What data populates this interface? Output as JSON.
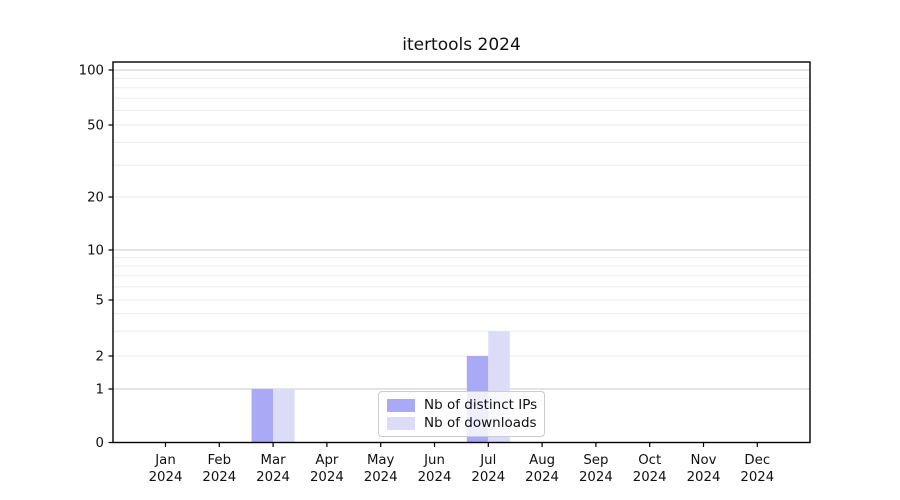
{
  "chart_data": {
    "type": "bar",
    "title": "itertools 2024",
    "categories": [
      {
        "month": "Jan",
        "year": "2024"
      },
      {
        "month": "Feb",
        "year": "2024"
      },
      {
        "month": "Mar",
        "year": "2024"
      },
      {
        "month": "Apr",
        "year": "2024"
      },
      {
        "month": "May",
        "year": "2024"
      },
      {
        "month": "Jun",
        "year": "2024"
      },
      {
        "month": "Jul",
        "year": "2024"
      },
      {
        "month": "Aug",
        "year": "2024"
      },
      {
        "month": "Sep",
        "year": "2024"
      },
      {
        "month": "Oct",
        "year": "2024"
      },
      {
        "month": "Nov",
        "year": "2024"
      },
      {
        "month": "Dec",
        "year": "2024"
      }
    ],
    "series": [
      {
        "name": "Nb of distinct IPs",
        "color": "#a9a9f6",
        "values": [
          0,
          0,
          1,
          0,
          0,
          0,
          2,
          0,
          0,
          0,
          0,
          0
        ]
      },
      {
        "name": "Nb of downloads",
        "color": "#dcdcf9",
        "values": [
          0,
          0,
          1,
          0,
          0,
          0,
          3,
          0,
          0,
          0,
          0,
          0
        ]
      }
    ],
    "y_axis": {
      "scale": "symlog",
      "ticks": [
        0,
        1,
        2,
        5,
        10,
        20,
        50,
        100
      ],
      "major_grid_values": [
        1,
        10,
        100
      ],
      "minor_ticks": [
        3,
        4,
        6,
        7,
        8,
        9,
        30,
        40,
        60,
        70,
        80,
        90
      ],
      "range": [
        0,
        110
      ]
    },
    "x_axis": {
      "label": "",
      "tick_count": 12
    },
    "legend": {
      "position": "lower center"
    },
    "grid": "horizontal",
    "colors": {
      "major_grid": "#c8c8c8",
      "minor_grid": "#ebebeb",
      "spine": "#000000",
      "text": "#111111",
      "legend_border": "#cccccc",
      "background": "#ffffff"
    }
  }
}
